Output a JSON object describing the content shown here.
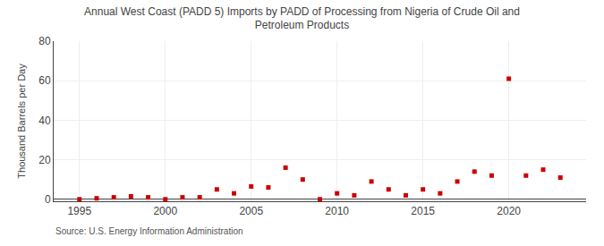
{
  "chart_data": {
    "type": "scatter",
    "title": "Annual West Coast (PADD 5) Imports by PADD of Processing from Nigeria of Crude Oil and\nPetroleum Products",
    "ylabel": "Thousand Barrels per Day",
    "annotations": [
      "Source: U.S. Energy Information Administration"
    ],
    "x": [
      1995,
      1996,
      1997,
      1998,
      1999,
      2000,
      2001,
      2002,
      2003,
      2004,
      2005,
      2006,
      2007,
      2008,
      2009,
      2010,
      2011,
      2012,
      2013,
      2014,
      2015,
      2016,
      2017,
      2018,
      2019,
      2020,
      2021,
      2022,
      2023
    ],
    "values": [
      0.0,
      0.5,
      1.0,
      1.5,
      1.0,
      0.0,
      1.0,
      1.0,
      5.0,
      3.0,
      6.5,
      6.0,
      16.0,
      10.0,
      0.0,
      3.0,
      2.0,
      9.0,
      5.0,
      2.0,
      5.0,
      3.0,
      9.0,
      14.0,
      12.0,
      61.0,
      12.0,
      15.0,
      11.0
    ],
    "color": "#cc0000",
    "marker": "square",
    "xlim": [
      1993.5,
      2024.5
    ],
    "ylim": [
      -1,
      80
    ],
    "xticks": [
      1995,
      2000,
      2005,
      2010,
      2015,
      2020
    ],
    "yticks": [
      0,
      20,
      40,
      60,
      80
    ],
    "grid": true
  }
}
